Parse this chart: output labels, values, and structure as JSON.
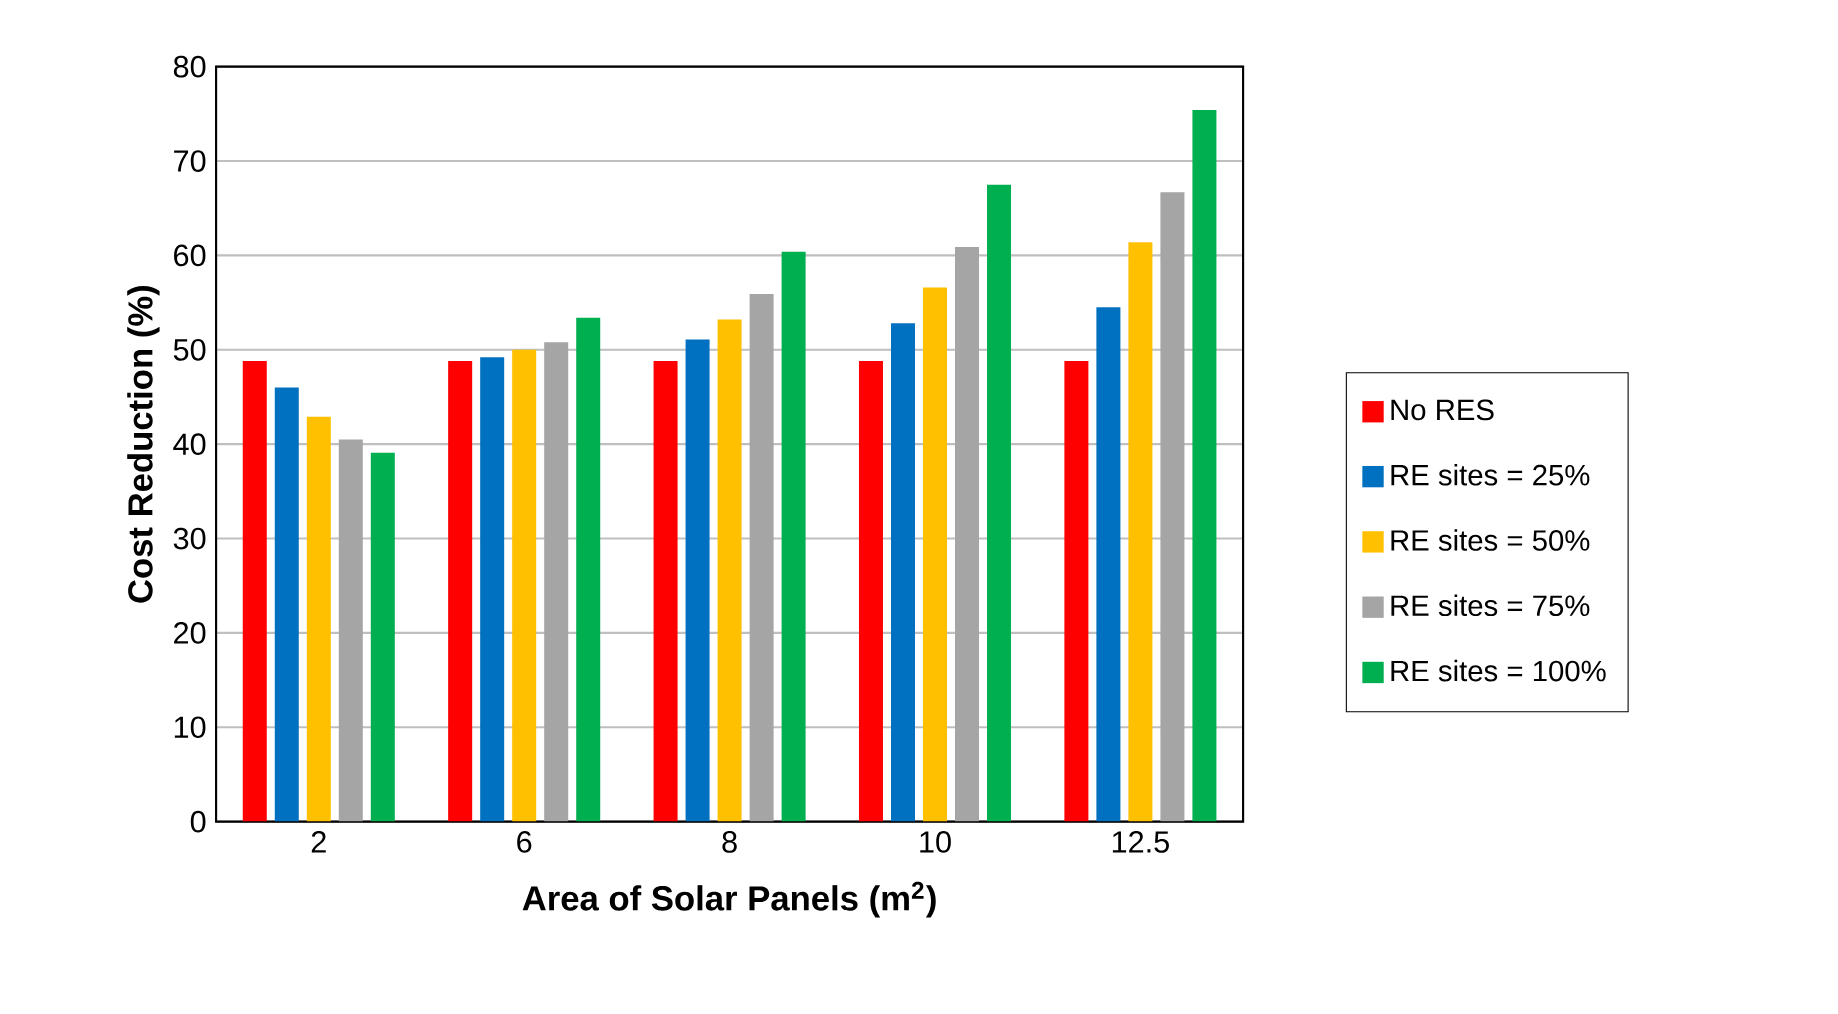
{
  "chart_data": {
    "type": "bar",
    "xlabel": "Area of Solar Panels (m$^{2}$)",
    "ylabel": "Cost Reduction (%)",
    "categories": [
      "2",
      "6",
      "8",
      "10",
      "12.5"
    ],
    "series": [
      {
        "name": "No RES",
        "color": "#ff0000",
        "values": [
          48.8,
          48.8,
          48.8,
          48.8,
          48.8
        ]
      },
      {
        "name": "RE sites = 25%",
        "color": "#0070c0",
        "values": [
          46.0,
          49.2,
          51.1,
          52.8,
          54.5
        ]
      },
      {
        "name": "RE sites = 50%",
        "color": "#ffc000",
        "values": [
          42.9,
          50.0,
          53.2,
          56.6,
          61.4
        ]
      },
      {
        "name": "RE sites = 75%",
        "color": "#a5a5a5",
        "values": [
          40.5,
          50.8,
          55.9,
          60.9,
          66.7
        ]
      },
      {
        "name": "RE sites = 100%",
        "color": "#00b050",
        "values": [
          39.1,
          53.4,
          60.4,
          67.5,
          75.4
        ]
      }
    ],
    "ylim": [
      0,
      80
    ],
    "yticks": [
      0,
      10,
      20,
      30,
      40,
      50,
      60,
      70,
      80
    ],
    "grid": "y",
    "legend": "right"
  }
}
